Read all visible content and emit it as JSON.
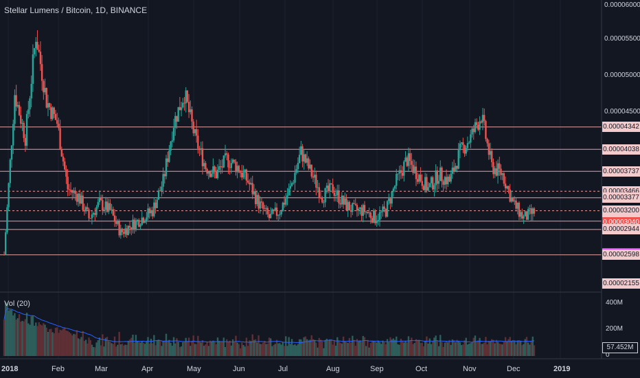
{
  "header": {
    "title": "Stellar Lumens / Bitcoin, 1D, BINANCE"
  },
  "volume_panel": {
    "label": "Vol (20)",
    "ticks": [
      "400M",
      "200M",
      "0"
    ],
    "current": "57.452M"
  },
  "price_axis_ticks": [
    "0.00006000",
    "0.00005500",
    "0.00005000",
    "0.00004500"
  ],
  "levels": [
    {
      "label": "0.00004342",
      "value": 4.342e-05,
      "box_color": "#f4cbcd",
      "style": "solid"
    },
    {
      "label": "0.00004038",
      "value": 4.038e-05,
      "box_color": "#f4cbcd",
      "style": "solid"
    },
    {
      "label": "0.00003737",
      "value": 3.737e-05,
      "box_color": "#f4cbcd",
      "style": "solid"
    },
    {
      "label": "0.00003466",
      "value": 3.466e-05,
      "box_color": "#f4cbcd",
      "style": "dashed"
    },
    {
      "label": "0.00003377",
      "value": 3.377e-05,
      "box_color": "#f4cbcd",
      "style": "solid"
    },
    {
      "label": "0.00003200",
      "value": 3.2e-05,
      "box_color": "#f4cbcd",
      "style": "dashed"
    },
    {
      "label": "0.00003058",
      "value": 3.058e-05,
      "box_color": "#f4cbcd",
      "style": "solid"
    },
    {
      "label": "0.00003040",
      "value": 3.04e-05,
      "box_color": "#ef5350",
      "style": "none"
    },
    {
      "label": "0.00002944",
      "value": 2.944e-05,
      "box_color": "#f4cbcd",
      "style": "solid"
    },
    {
      "label": "0.00002620",
      "value": 2.62e-05,
      "box_color": "#e040fb",
      "style": "none"
    },
    {
      "label": "0.00002598",
      "value": 2.598e-05,
      "box_color": "#f4cbcd",
      "style": "solid"
    },
    {
      "label": "0.00002155",
      "value": 2.155e-05,
      "box_color": "#f4cbcd",
      "style": "none"
    }
  ],
  "time_axis": [
    {
      "label": "2018",
      "bold": true
    },
    {
      "label": "Feb",
      "bold": false
    },
    {
      "label": "Mar",
      "bold": false
    },
    {
      "label": "Apr",
      "bold": false
    },
    {
      "label": "May",
      "bold": false
    },
    {
      "label": "Jun",
      "bold": false
    },
    {
      "label": "Jul",
      "bold": false
    },
    {
      "label": "Aug",
      "bold": false
    },
    {
      "label": "Sep",
      "bold": false
    },
    {
      "label": "Oct",
      "bold": false
    },
    {
      "label": "Nov",
      "bold": false
    },
    {
      "label": "Dec",
      "bold": false
    },
    {
      "label": "2019",
      "bold": true
    }
  ],
  "colors": {
    "up": "#26a69a",
    "down": "#ef5350",
    "level_line": "#e8a0a0",
    "vol_ma": "#2962ff",
    "background": "#131722"
  },
  "chart_data": {
    "type": "candlestick",
    "title": "Stellar Lumens / Bitcoin, 1D, BINANCE",
    "y_range": [
      2.155e-05,
      6e-05
    ],
    "close_path_by_week": [
      [
        "2018-01-01",
        2.6e-05
      ],
      [
        "2018-01-08",
        4.8e-05
      ],
      [
        "2018-01-15",
        4.2e-05
      ],
      [
        "2018-01-22",
        5.6e-05
      ],
      [
        "2018-01-29",
        4.7e-05
      ],
      [
        "2018-02-05",
        4.4e-05
      ],
      [
        "2018-02-12",
        3.5e-05
      ],
      [
        "2018-02-19",
        3.4e-05
      ],
      [
        "2018-02-26",
        3.1e-05
      ],
      [
        "2018-03-05",
        3.3e-05
      ],
      [
        "2018-03-12",
        3.2e-05
      ],
      [
        "2018-03-19",
        2.9e-05
      ],
      [
        "2018-03-26",
        3e-05
      ],
      [
        "2018-04-02",
        3.1e-05
      ],
      [
        "2018-04-09",
        3.2e-05
      ],
      [
        "2018-04-16",
        3.6e-05
      ],
      [
        "2018-04-23",
        4.4e-05
      ],
      [
        "2018-04-30",
        4.8e-05
      ],
      [
        "2018-05-07",
        4.2e-05
      ],
      [
        "2018-05-14",
        3.8e-05
      ],
      [
        "2018-05-21",
        3.7e-05
      ],
      [
        "2018-05-28",
        3.9e-05
      ],
      [
        "2018-06-04",
        3.8e-05
      ],
      [
        "2018-06-11",
        3.6e-05
      ],
      [
        "2018-06-18",
        3.3e-05
      ],
      [
        "2018-06-25",
        3.1e-05
      ],
      [
        "2018-07-02",
        3.2e-05
      ],
      [
        "2018-07-09",
        3.5e-05
      ],
      [
        "2018-07-16",
        4e-05
      ],
      [
        "2018-07-23",
        3.7e-05
      ],
      [
        "2018-07-30",
        3.4e-05
      ],
      [
        "2018-08-06",
        3.5e-05
      ],
      [
        "2018-08-13",
        3.3e-05
      ],
      [
        "2018-08-20",
        3.2e-05
      ],
      [
        "2018-08-27",
        3.2e-05
      ],
      [
        "2018-09-03",
        3.1e-05
      ],
      [
        "2018-09-10",
        3.2e-05
      ],
      [
        "2018-09-17",
        3.6e-05
      ],
      [
        "2018-09-24",
        3.9e-05
      ],
      [
        "2018-10-01",
        3.7e-05
      ],
      [
        "2018-10-08",
        3.5e-05
      ],
      [
        "2018-10-15",
        3.7e-05
      ],
      [
        "2018-10-22",
        3.6e-05
      ],
      [
        "2018-10-29",
        4e-05
      ],
      [
        "2018-11-05",
        4.2e-05
      ],
      [
        "2018-11-12",
        4.5e-05
      ],
      [
        "2018-11-19",
        3.8e-05
      ],
      [
        "2018-11-26",
        3.7e-05
      ],
      [
        "2018-12-03",
        3.3e-05
      ],
      [
        "2018-12-10",
        3.1e-05
      ],
      [
        "2018-12-17",
        3.18e-05
      ]
    ],
    "volume": {
      "label": "Vol (20)",
      "max": "400M",
      "last": "57.452M"
    }
  }
}
